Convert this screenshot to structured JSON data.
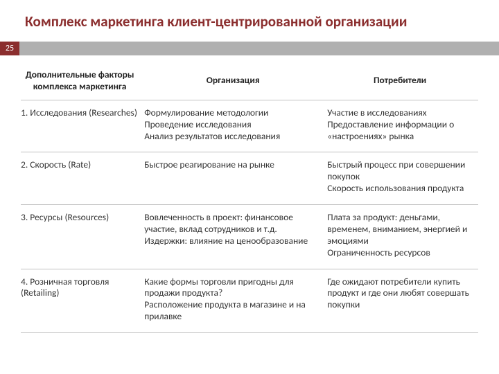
{
  "title": "Комплекс маркетинга клиент-центрированной организации",
  "page_number": "25",
  "colors": {
    "title": "#8b2e2e",
    "bar_bg": "#b0b0b0",
    "bar_num_bg": "#8b2e2e",
    "border": "#bfbfbf",
    "text": "#333333"
  },
  "table": {
    "columns": [
      "Дополнительные факторы комплекса маркетинга",
      "Организация",
      "Потребители"
    ],
    "rows": [
      {
        "factor": "1. Исследования (Researches)",
        "org": "Формулирование методологии\nПроведение исследования\nАнализ результатов исследования",
        "consumer": "Участие в исследованиях\nПредоставление информации о «настроениях» рынка"
      },
      {
        "factor": "2. Скорость (Rate)",
        "org": "Быстрое реагирование на рынке",
        "consumer": "Быстрый процесс при совершении покупок\nСкорость использования продукта"
      },
      {
        "factor": "3. Ресурсы (Resources)",
        "org": "Вовлеченность в проект: финансовое участие, вклад сотрудников и т.д.\nИздержки: влияние на ценообразование",
        "consumer": "Плата за продукт: деньгами, временем, вниманием, энергией и эмоциями\nОграниченность ресурсов"
      },
      {
        "factor": "4. Розничная торговля (Retailing)",
        "org": "Какие формы торговли пригодны для продажи продукта?\nРасположение продукта в магазине и на прилавке",
        "consumer": "Где ожидают потребители купить продукт и где они любят совершать покупки"
      }
    ]
  }
}
